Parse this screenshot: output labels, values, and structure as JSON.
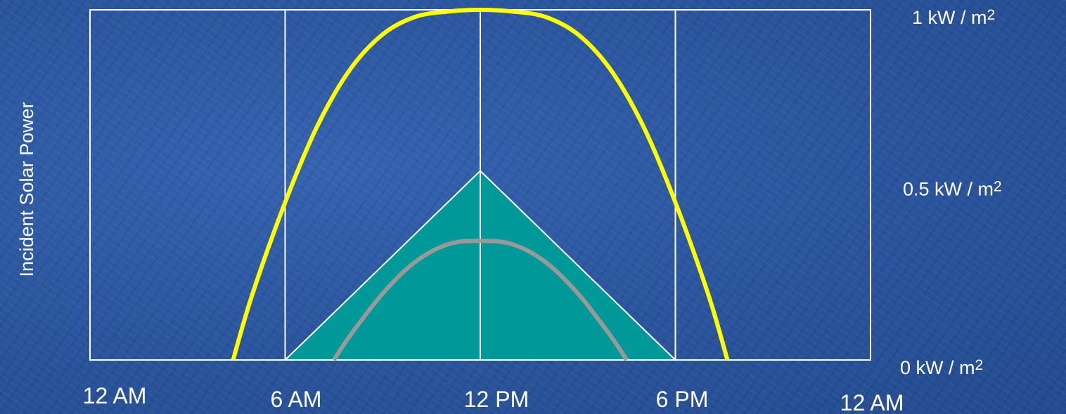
{
  "chart_data": {
    "type": "line",
    "ylabel": "Incident Solar Power",
    "x_tick_labels": [
      "12 AM",
      "6 AM",
      "12 PM",
      "6 PM",
      "12 AM"
    ],
    "y_tick_labels": [
      {
        "value": 1.0,
        "text": "1 kW / m",
        "sup": "2"
      },
      {
        "value": 0.5,
        "text": "0.5 kW / m",
        "sup": "2"
      },
      {
        "value": 0.0,
        "text": "0 kW / m",
        "sup": "2"
      }
    ],
    "x_unit": "hours",
    "xlim": [
      0,
      24
    ],
    "ylim": [
      0,
      1
    ],
    "gridlines_x": [
      6,
      12,
      18
    ],
    "series": [
      {
        "kind": "curve",
        "color": "#ffff00",
        "points": [
          [
            4.4,
            0
          ],
          [
            5,
            0.19
          ],
          [
            6,
            0.45
          ],
          [
            7,
            0.67
          ],
          [
            8,
            0.83
          ],
          [
            9,
            0.93
          ],
          [
            10,
            0.98
          ],
          [
            11,
            0.995
          ],
          [
            12,
            1.0
          ],
          [
            13,
            0.995
          ],
          [
            14,
            0.98
          ],
          [
            15,
            0.93
          ],
          [
            16,
            0.83
          ],
          [
            17,
            0.67
          ],
          [
            18,
            0.45
          ],
          [
            19,
            0.19
          ],
          [
            19.6,
            0
          ]
        ]
      },
      {
        "kind": "filled-area",
        "color": "#009999",
        "points": [
          [
            6,
            0
          ],
          [
            12,
            0.54
          ],
          [
            18,
            0
          ]
        ]
      },
      {
        "kind": "curve",
        "color": "#999999",
        "points": [
          [
            7.5,
            0
          ],
          [
            8,
            0.07
          ],
          [
            9,
            0.19
          ],
          [
            10,
            0.28
          ],
          [
            11,
            0.33
          ],
          [
            12,
            0.34
          ],
          [
            13,
            0.33
          ],
          [
            14,
            0.28
          ],
          [
            15,
            0.19
          ],
          [
            16,
            0.07
          ],
          [
            16.5,
            0
          ]
        ]
      }
    ]
  }
}
